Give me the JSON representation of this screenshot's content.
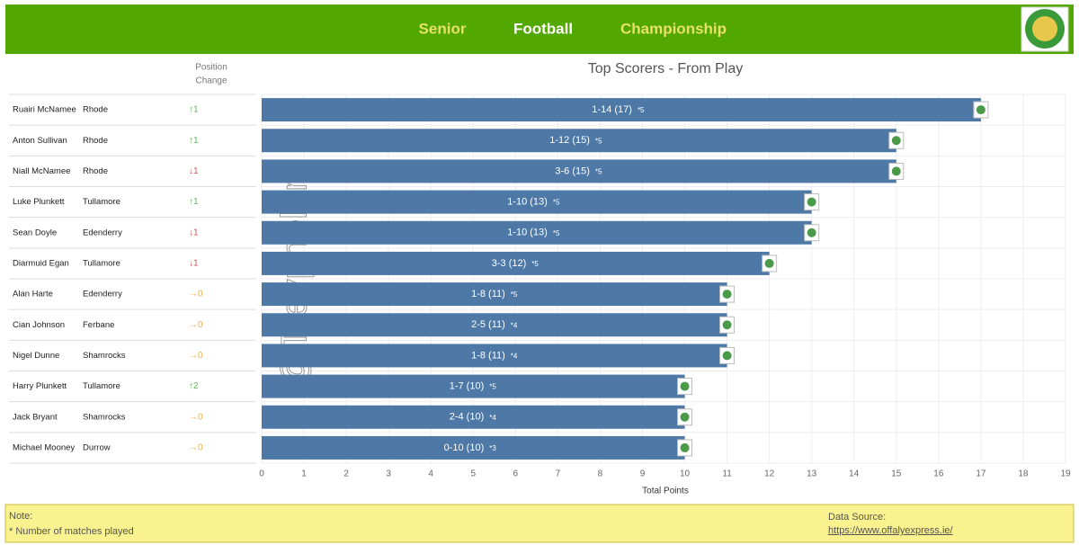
{
  "chart_data": {
    "type": "bar",
    "orientation": "horizontal",
    "header": [
      {
        "text": "Senior",
        "color": "#e8e06a"
      },
      {
        "text": "Football",
        "color": "#ffffff"
      },
      {
        "text": "Championship",
        "color": "#e8e06a"
      }
    ],
    "header_color": "#52a800",
    "title": "Top  Scorers - From Play",
    "change_header": [
      "Position",
      "Change"
    ],
    "categories": [
      "Ruairi McNamee",
      "Anton Sullivan",
      "Niall McNamee",
      "Luke Plunkett",
      "Sean Doyle",
      "Diarmuid Egan",
      "Alan Harte",
      "Cian Johnson",
      "Nigel Dunne",
      "Harry Plunkett",
      "Jack Bryant",
      "Michael Mooney"
    ],
    "clubs": [
      "Rhode",
      "Rhode",
      "Rhode",
      "Tullamore",
      "Edenderry",
      "Tullamore",
      "Edenderry",
      "Ferbane",
      "Shamrocks",
      "Tullamore",
      "Shamrocks",
      "Durrow"
    ],
    "position_change": [
      "↑1",
      "↑1",
      "↓1",
      "↑1",
      "↓1",
      "↓1",
      "→0",
      "→0",
      "→0",
      "↑2",
      "→0",
      "→0"
    ],
    "position_change_colors": [
      "#5cb85c",
      "#5cb85c",
      "#d9534f",
      "#5cb85c",
      "#d9534f",
      "#d9534f",
      "#f0ad4e",
      "#f0ad4e",
      "#f0ad4e",
      "#5cb85c",
      "#f0ad4e",
      "#f0ad4e"
    ],
    "values": [
      17,
      15,
      15,
      13,
      13,
      12,
      11,
      11,
      11,
      10,
      10,
      10
    ],
    "value_labels": [
      "1-14 (17)",
      "1-12 (15)",
      "3-6 (15)",
      "1-10 (13)",
      "1-10 (13)",
      "3-3 (12)",
      "1-8 (11)",
      "2-5 (11)",
      "1-8 (11)",
      "1-7 (10)",
      "2-4 (10)",
      "0-10 (10)"
    ],
    "matches": [
      "*5",
      "*5",
      "*5",
      "*5",
      "*5",
      "*5",
      "*5",
      "*4",
      "*4",
      "*5",
      "*4",
      "*3"
    ],
    "color": "#4e79a7",
    "xlim": [
      0,
      19
    ],
    "xticks": [
      0,
      1,
      2,
      3,
      4,
      5,
      6,
      7,
      8,
      9,
      10,
      11,
      12,
      13,
      14,
      15,
      16,
      17,
      18,
      19
    ],
    "xlabel": "Total Points",
    "grid": true,
    "watermark": "@Trevphelan",
    "note_title": "Note:",
    "note": "* Number of matches played",
    "source_title": "Data Source:",
    "source_url": "https://www.offalyexpress.ie/"
  }
}
